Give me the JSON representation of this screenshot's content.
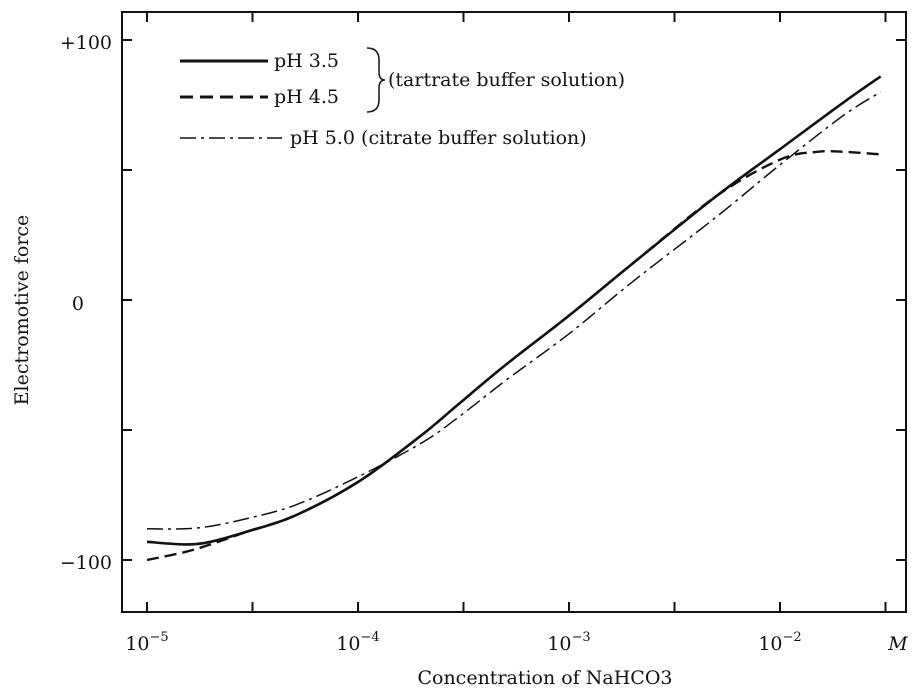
{
  "chart_data": {
    "type": "line",
    "xscale": "log",
    "xlabel": "Concentration of NaHCO3",
    "ylabel": "Electromotive force",
    "x_unit_label": "M",
    "xlim": [
      1e-05,
      0.03
    ],
    "ylim": [
      -100,
      100
    ],
    "x_ticks": [
      {
        "value": 1e-05,
        "base": "10",
        "exp": "−5"
      },
      {
        "value": 0.0001,
        "base": "10",
        "exp": "−4"
      },
      {
        "value": 0.001,
        "base": "10",
        "exp": "−3"
      },
      {
        "value": 0.01,
        "base": "10",
        "exp": "−2"
      }
    ],
    "y_ticks": [
      {
        "value": 100,
        "label": "+100"
      },
      {
        "value": 50,
        "label": ""
      },
      {
        "value": 0,
        "label": "0"
      },
      {
        "value": -50,
        "label": ""
      },
      {
        "value": -100,
        "label": "−100"
      }
    ],
    "grid": false,
    "legend_position": "top-left",
    "legend_group_note": "(tartrate buffer solution)",
    "series": [
      {
        "name": "pH 3.5",
        "style": "solid",
        "x": [
          1e-05,
          1.5e-05,
          2e-05,
          3e-05,
          5e-05,
          0.0001,
          0.0002,
          0.0003,
          0.0005,
          0.001,
          0.002,
          0.005,
          0.01,
          0.02,
          0.03
        ],
        "y": [
          -93,
          -94,
          -93,
          -89,
          -83,
          -70,
          -52,
          -40,
          -25,
          -6,
          14,
          40,
          58,
          76,
          86
        ]
      },
      {
        "name": "pH 4.5",
        "style": "dashed",
        "x": [
          1e-05,
          1.5e-05,
          2e-05,
          3e-05,
          5e-05,
          0.0001,
          0.0002,
          0.0003,
          0.0005,
          0.001,
          0.002,
          0.005,
          0.01,
          0.015,
          0.02,
          0.03
        ],
        "y": [
          -100,
          -97,
          -94,
          -89,
          -83,
          -70,
          -52,
          -40,
          -25,
          -6,
          14,
          40,
          54,
          57,
          57,
          56
        ]
      },
      {
        "name": "pH 5.0 (citrate buffer solution)",
        "style": "dashdot",
        "x": [
          1e-05,
          1.5e-05,
          2e-05,
          3e-05,
          5e-05,
          0.0001,
          0.0002,
          0.0003,
          0.0005,
          0.001,
          0.002,
          0.005,
          0.01,
          0.02,
          0.03
        ],
        "y": [
          -88,
          -88,
          -87,
          -84,
          -79,
          -68,
          -55,
          -45,
          -31,
          -13,
          7,
          32,
          52,
          71,
          80
        ]
      }
    ],
    "colors": {
      "line": "#111111",
      "axis": "#111111",
      "background": "#ffffff"
    }
  }
}
